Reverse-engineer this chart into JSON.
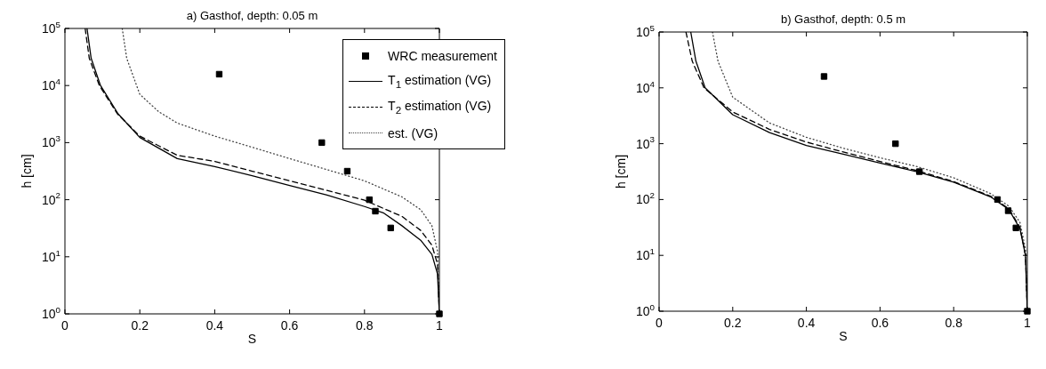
{
  "chart_data": [
    {
      "type": "line",
      "title": "a) Gasthof, depth: 0.05 m",
      "xlabel": "S",
      "ylabel": "h [cm]",
      "log": "y",
      "xlim": [
        0,
        1
      ],
      "ylim": [
        1,
        100000
      ],
      "xticks": [
        0,
        0.2,
        0.4,
        0.6,
        0.8,
        1
      ],
      "yticks": [
        {
          "value": 1,
          "label": "10$^{0}$"
        },
        {
          "value": 10,
          "label": "10$^{1}$"
        },
        {
          "value": 100,
          "label": "10$^{2}$"
        },
        {
          "value": 1000,
          "label": "10$^{3}$"
        },
        {
          "value": 10000,
          "label": "10$^{4}$"
        },
        {
          "value": 100000,
          "label": "10$^{5}$"
        }
      ],
      "grid": false,
      "legend": "top right",
      "series": [
        {
          "name": "WRC measurement",
          "type": "scatter",
          "marker": "square",
          "color": "#000000",
          "x": [
            0.412,
            0.686,
            0.754,
            0.813,
            0.829,
            0.87,
            1
          ],
          "values": [
            15800,
            1000,
            316,
            100,
            63,
            32,
            1
          ]
        },
        {
          "name": "T$_{1}$ estimation (VG)",
          "type": "line",
          "line_style": "solid",
          "marker": "none",
          "color": "#000000",
          "x": [
            0.059,
            0.07,
            0.095,
            0.142,
            0.2,
            0.3,
            0.4,
            0.5,
            0.6,
            0.7,
            0.8,
            0.85,
            0.9,
            0.95,
            0.98,
            0.995,
            1
          ],
          "values": [
            100000,
            30000,
            10000,
            3200,
            1230,
            525,
            380,
            263,
            178,
            121,
            76,
            59,
            35,
            19.5,
            11,
            5,
            1
          ]
        },
        {
          "name": "T$_{2}$ estimation (VG)",
          "type": "line",
          "line_style": "dashed",
          "marker": "none",
          "color": "#000000",
          "x": [
            0.054,
            0.065,
            0.092,
            0.14,
            0.2,
            0.3,
            0.4,
            0.5,
            0.6,
            0.7,
            0.8,
            0.9,
            0.95,
            0.98,
            0.995,
            1
          ],
          "values": [
            100000,
            30000,
            10000,
            3200,
            1300,
            600,
            470,
            316,
            214,
            145,
            98,
            51,
            29,
            16,
            7.4,
            1
          ]
        },
        {
          "name": "est. (VG)",
          "type": "line",
          "line_style": "dotted",
          "marker": "none",
          "color": "#444444",
          "x": [
            0.153,
            0.165,
            0.2,
            0.25,
            0.3,
            0.4,
            0.5,
            0.6,
            0.7,
            0.8,
            0.9,
            0.95,
            0.98,
            0.995,
            1
          ],
          "values": [
            100000,
            30000,
            7000,
            3500,
            2200,
            1300,
            830,
            525,
            336,
            214,
            112,
            67,
            35,
            12.5,
            1
          ]
        }
      ]
    },
    {
      "type": "line",
      "title": "b) Gasthof, depth: 0.5 m",
      "xlabel": "S",
      "ylabel": "h [cm]",
      "log": "y",
      "xlim": [
        0,
        1
      ],
      "ylim": [
        1,
        100000
      ],
      "xticks": [
        0,
        0.2,
        0.4,
        0.6,
        0.8,
        1
      ],
      "yticks": [
        {
          "value": 1,
          "label": "10$^{0}$"
        },
        {
          "value": 10,
          "label": "10$^{1}$"
        },
        {
          "value": 100,
          "label": "10$^{2}$"
        },
        {
          "value": 1000,
          "label": "10$^{3}$"
        },
        {
          "value": 10000,
          "label": "10$^{4}$"
        },
        {
          "value": 100000,
          "label": "10$^{5}$"
        }
      ],
      "grid": false,
      "series": [
        {
          "type": "scatter",
          "marker": "square",
          "color": "#000000",
          "x": [
            0.448,
            0.642,
            0.707,
            0.919,
            0.948,
            0.969,
            1
          ],
          "values": [
            16000,
            1000,
            316,
            100,
            63,
            31,
            1
          ]
        },
        {
          "type": "line",
          "line_style": "solid",
          "marker": "none",
          "color": "#000000",
          "x": [
            0.086,
            0.1,
            0.125,
            0.2,
            0.3,
            0.4,
            0.5,
            0.6,
            0.7,
            0.8,
            0.9,
            0.95,
            0.98,
            0.995,
            1
          ],
          "values": [
            100000,
            30000,
            10000,
            3300,
            1580,
            930,
            650,
            450,
            316,
            205,
            112,
            66,
            30,
            10,
            1
          ]
        },
        {
          "type": "line",
          "line_style": "dashed",
          "marker": "none",
          "color": "#000000",
          "x": [
            0.073,
            0.09,
            0.122,
            0.2,
            0.3,
            0.4,
            0.5,
            0.6,
            0.7,
            0.8,
            0.9,
            0.95,
            0.98,
            0.995,
            1
          ],
          "values": [
            100000,
            30000,
            10000,
            3700,
            1800,
            1070,
            710,
            480,
            330,
            210,
            115,
            68,
            32,
            10,
            1
          ]
        },
        {
          "type": "line",
          "line_style": "dotted",
          "marker": "none",
          "color": "#444444",
          "x": [
            0.145,
            0.16,
            0.2,
            0.3,
            0.4,
            0.5,
            0.6,
            0.7,
            0.8,
            0.9,
            0.95,
            0.98,
            0.995,
            1
          ],
          "values": [
            100000,
            30000,
            6800,
            2350,
            1300,
            830,
            560,
            390,
            245,
            128,
            76,
            39,
            13,
            1
          ]
        }
      ]
    }
  ]
}
